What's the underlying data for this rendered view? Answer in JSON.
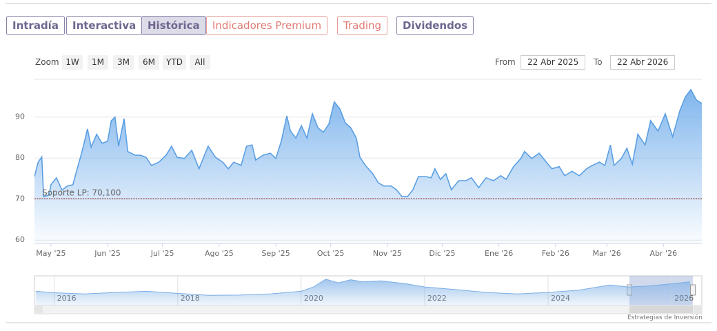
{
  "tabs": [
    "Intradía",
    "Interactiva",
    "Histórica",
    "Indicadores Premium",
    "Trading",
    "Dividendos"
  ],
  "zoom": {
    "label": "Zoom",
    "buttons": [
      "1W",
      "1M",
      "3M",
      "6M",
      "YTD",
      "All"
    ]
  },
  "range": {
    "from_label": "From",
    "from": "22 Abr 2025",
    "to_label": "To",
    "to": "22 Abr 2026"
  },
  "credit": "Estrategias de Inversión",
  "chart_data": [
    {
      "type": "area",
      "color": "#5b9fe3",
      "x": [
        0,
        2,
        4,
        5,
        8,
        9,
        12,
        15,
        18,
        21,
        23,
        26,
        29,
        31,
        34,
        37,
        40,
        42,
        44,
        46,
        49,
        51,
        55,
        58,
        61,
        64,
        68,
        72,
        75,
        78,
        82,
        86,
        90,
        95,
        99,
        103,
        106,
        109,
        113,
        116,
        119,
        121,
        125,
        129,
        132,
        135,
        138,
        140,
        143,
        146,
        149,
        152,
        155,
        158,
        161,
        164,
        167,
        170,
        173,
        176,
        178,
        181,
        185,
        188,
        191,
        195,
        198,
        201,
        204,
        207,
        210,
        214,
        217,
        219,
        222,
        225,
        228,
        232,
        236,
        239,
        243,
        247,
        251,
        255,
        258,
        262,
        266,
        268,
        272,
        276,
        280,
        283,
        287,
        290,
        294,
        298,
        302,
        305,
        309,
        312,
        315,
        317,
        321,
        324,
        327,
        330,
        334,
        337,
        341,
        345,
        349,
        353,
        356,
        359,
        362,
        365
      ],
      "values": [
        75.5,
        79,
        80.3,
        70.6,
        71,
        73.5,
        75.2,
        72.2,
        73.2,
        73.5,
        76.8,
        81.6,
        87.1,
        82.7,
        85.8,
        83.6,
        84.1,
        89.1,
        90,
        82.9,
        89.6,
        81.6,
        80.7,
        80.7,
        80.2,
        78.2,
        79,
        80.7,
        82.9,
        80.2,
        79.9,
        81.9,
        77.4,
        82.9,
        80.2,
        79,
        77.4,
        79,
        78.2,
        82.9,
        83.2,
        79.5,
        80.7,
        81.2,
        79.9,
        84.1,
        90.3,
        86.6,
        84.9,
        87.9,
        84.9,
        90.8,
        87.4,
        86.3,
        88.3,
        93.7,
        92,
        88.6,
        87.4,
        84.9,
        80.2,
        78.2,
        76.2,
        74,
        73.2,
        73.2,
        72.3,
        70.6,
        70.6,
        72.3,
        75.5,
        75.5,
        75.2,
        77.4,
        74.8,
        76.2,
        72.3,
        74.5,
        74.5,
        75.2,
        72.8,
        75.2,
        74.5,
        75.7,
        74.8,
        77.9,
        79.9,
        81.6,
        79.9,
        81.2,
        79,
        77.4,
        77.9,
        75.7,
        76.8,
        75.7,
        77.4,
        78.2,
        79,
        78.2,
        83.2,
        78.2,
        79.9,
        82.4,
        78.5,
        85.8,
        83.2,
        89.1,
        86.6,
        90.8,
        85.2,
        91.6,
        94.9,
        96.7,
        94.2,
        93.3
      ],
      "xlim": [
        0,
        365
      ],
      "xticks": [
        {
          "value": 9,
          "label": "May '25"
        },
        {
          "value": 40,
          "label": "Jun '25"
        },
        {
          "value": 70,
          "label": "Jul '25"
        },
        {
          "value": 101,
          "label": "Ago '25"
        },
        {
          "value": 132,
          "label": "Sep '25"
        },
        {
          "value": 162,
          "label": "Oct '25"
        },
        {
          "value": 193,
          "label": "Nov '25"
        },
        {
          "value": 223,
          "label": "Dic '25"
        },
        {
          "value": 254,
          "label": "Ene '26"
        },
        {
          "value": 285,
          "label": "Feb '26"
        },
        {
          "value": 313,
          "label": "Mar '26"
        },
        {
          "value": 344,
          "label": "Abr '26"
        }
      ],
      "ylim": [
        59.2,
        99.2
      ],
      "yticks": [
        60,
        70,
        80,
        90
      ],
      "grid": true,
      "plot_line": {
        "value": 70.1,
        "label": "Soporte LP: 70,100",
        "color": "#8b1a1a"
      }
    },
    {
      "type": "area",
      "color": "#7aaee6",
      "x": [
        2015.7,
        2016,
        2016.5,
        2017,
        2017.5,
        2018,
        2018.5,
        2019,
        2019.5,
        2020,
        2020.2,
        2020.4,
        2020.6,
        2020.8,
        2021,
        2021.3,
        2021.7,
        2022,
        2022.5,
        2023,
        2023.5,
        2024,
        2024.5,
        2025,
        2025.3,
        2025.6,
        2026,
        2026.3
      ],
      "values": [
        69,
        64,
        60,
        65,
        69,
        62,
        55,
        56,
        60,
        69,
        84,
        111,
        98,
        109,
        102,
        105,
        95,
        84,
        75,
        65,
        60,
        65,
        73,
        91,
        84,
        87,
        95,
        102
      ],
      "xlim": [
        2015.68,
        2026.49
      ],
      "xticks": [
        2016,
        2018,
        2020,
        2022,
        2024,
        2026
      ],
      "ylim": [
        20,
        120
      ]
    }
  ]
}
